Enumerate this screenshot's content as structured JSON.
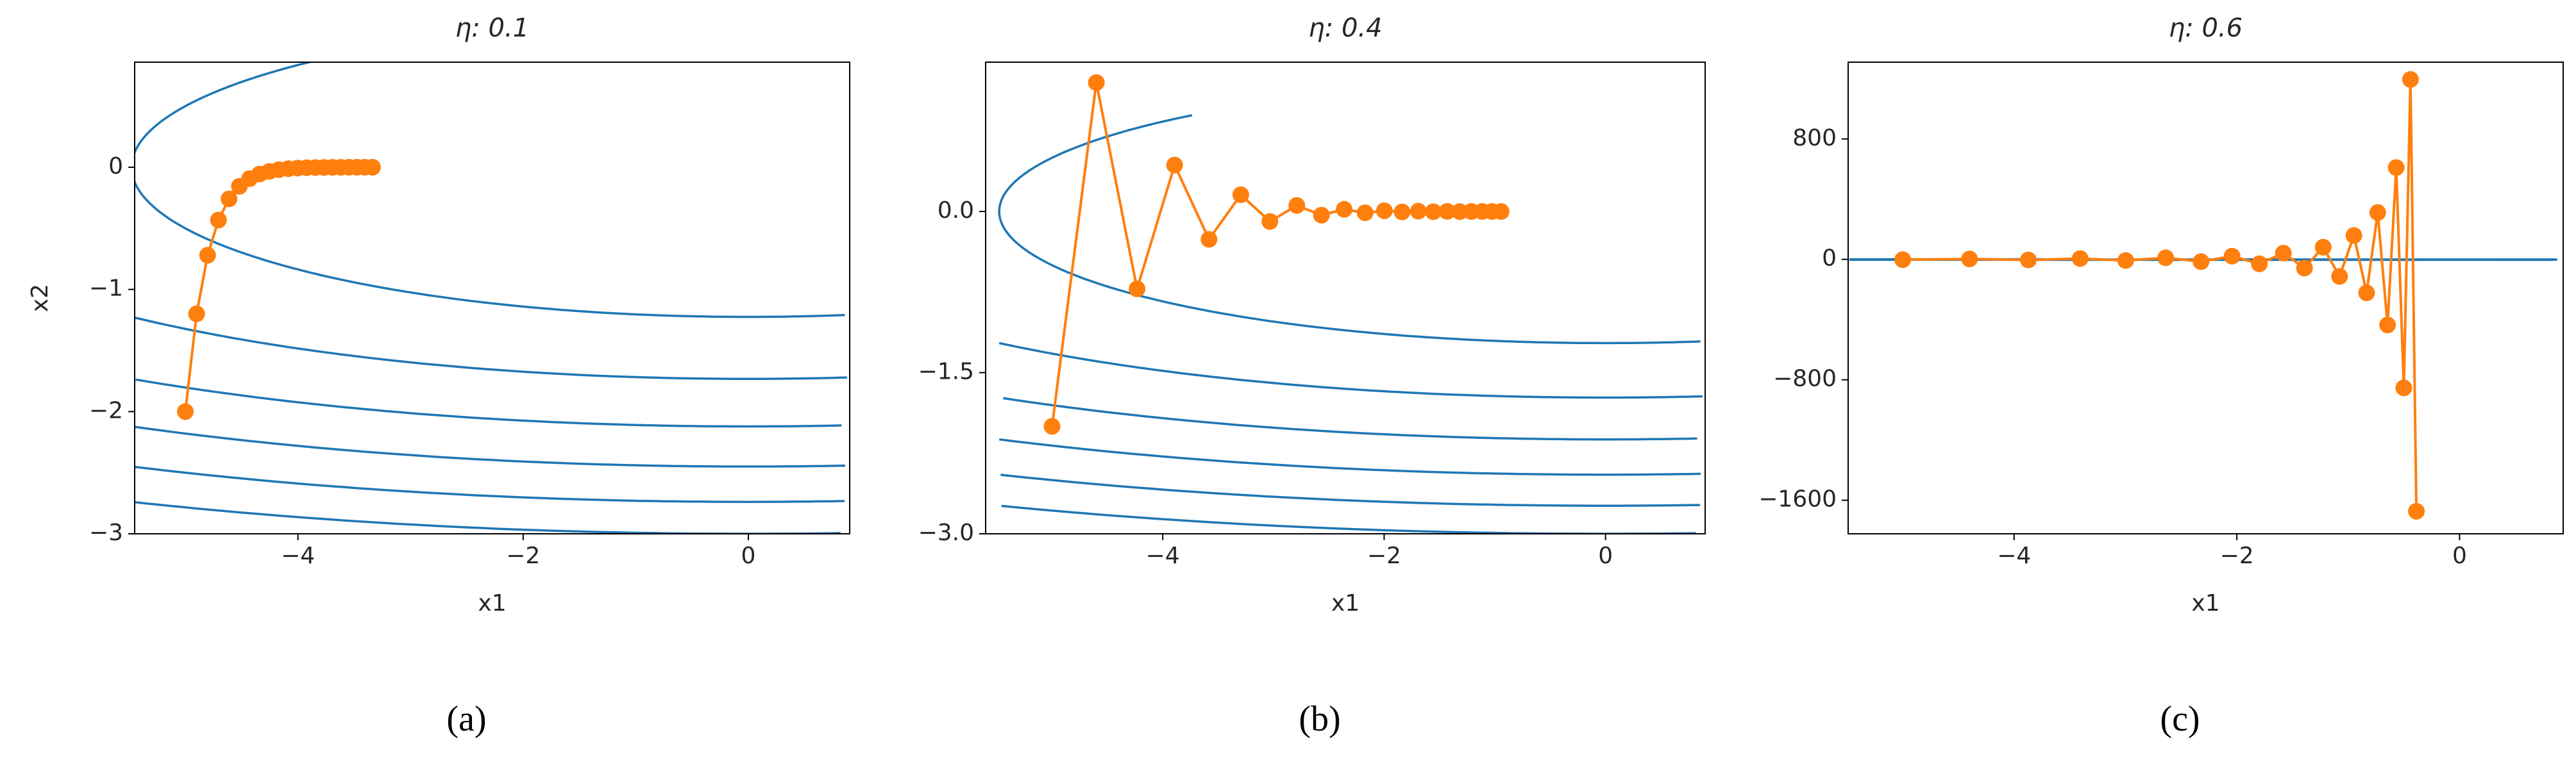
{
  "chart_data": [
    {
      "type": "line",
      "title": "η: 0.1",
      "xlabel": "x1",
      "ylabel": "x2",
      "caption": "(a)",
      "x": [
        -5,
        -4.9,
        -4.802,
        -4.706,
        -4.612,
        -4.52,
        -4.429,
        -4.341,
        -4.254,
        -4.169,
        -4.085,
        -4.004,
        -3.924,
        -3.845,
        -3.768,
        -3.693,
        -3.619,
        -3.547,
        -3.476,
        -3.406,
        -3.338
      ],
      "values": [
        -2,
        -1.2,
        -0.72,
        -0.432,
        -0.259,
        -0.156,
        -0.093,
        -0.056,
        -0.034,
        -0.02,
        -0.012,
        -0.007,
        -0.004,
        -0.003,
        -0.002,
        -0.001,
        -0.001,
        0,
        0,
        0,
        0
      ],
      "color": "#ff7f0e",
      "contour_color": "#1f77b4",
      "markers": true,
      "xlim": [
        -5.45,
        0.9
      ],
      "ylim": [
        -3,
        0.86
      ],
      "xticks": [
        {
          "value": -4,
          "label": "−4"
        },
        {
          "value": -2,
          "label": "−2"
        },
        0
      ],
      "yticks": [
        {
          "value": -3,
          "label": "−3"
        },
        {
          "value": -2,
          "label": "−2"
        },
        {
          "value": -1,
          "label": "−1"
        },
        0
      ]
    },
    {
      "type": "line",
      "title": "η: 0.4",
      "xlabel": "x1",
      "caption": "(b)",
      "x": [
        -5,
        -4.6,
        -4.232,
        -3.893,
        -3.582,
        -3.295,
        -3.032,
        -2.789,
        -2.566,
        -2.361,
        -2.172,
        -1.998,
        -1.838,
        -1.691,
        -1.556,
        -1.431,
        -1.317,
        -1.212,
        -1.115,
        -1.026,
        -0.943
      ],
      "values": [
        -2,
        1.2,
        -0.72,
        0.432,
        -0.259,
        0.156,
        -0.093,
        0.056,
        -0.034,
        0.02,
        -0.012,
        0.007,
        -0.004,
        0.003,
        -0.002,
        0.001,
        -0.001,
        0,
        0,
        0,
        0
      ],
      "color": "#ff7f0e",
      "contour_color": "#1f77b4",
      "markers": true,
      "xlim": [
        -5.6,
        0.9
      ],
      "ylim": [
        -3,
        1.39
      ],
      "xticks": [
        {
          "value": -4,
          "label": "−4"
        },
        {
          "value": -2,
          "label": "−2"
        },
        0
      ],
      "yticks": [
        {
          "value": -3,
          "label": "−3.0"
        },
        {
          "value": -1.5,
          "label": "−1.5"
        },
        {
          "value": 0,
          "label": "0.0"
        }
      ]
    },
    {
      "type": "line",
      "title": "η: 0.6",
      "xlabel": "x1",
      "caption": "(c)",
      "x": [
        -5,
        -4.4,
        -3.872,
        -3.407,
        -2.998,
        -2.639,
        -2.322,
        -2.043,
        -1.798,
        -1.582,
        -1.393,
        -1.225,
        -1.078,
        -0.949,
        -0.835,
        -0.735,
        -0.647,
        -0.569,
        -0.501,
        -0.441,
        -0.388
      ],
      "values": [
        -2,
        2.8,
        -3.92,
        5.488,
        -7.683,
        10.757,
        -15.059,
        21.083,
        -29.516,
        41.322,
        -57.851,
        80.991,
        -113.388,
        158.743,
        -222.24,
        311.136,
        -435.59,
        609.827,
        -853.757,
        1195.26,
        -1673.36
      ],
      "color": "#ff7f0e",
      "contour_color": "#1f77b4",
      "markers": true,
      "xlim": [
        -5.49,
        0.93
      ],
      "ylim": [
        -1823,
        1310
      ],
      "xticks": [
        {
          "value": -4,
          "label": "−4"
        },
        {
          "value": -2,
          "label": "−2"
        },
        0
      ],
      "yticks": [
        {
          "value": -1600,
          "label": "−1600"
        },
        {
          "value": -800,
          "label": "−800"
        },
        0,
        800
      ]
    }
  ]
}
